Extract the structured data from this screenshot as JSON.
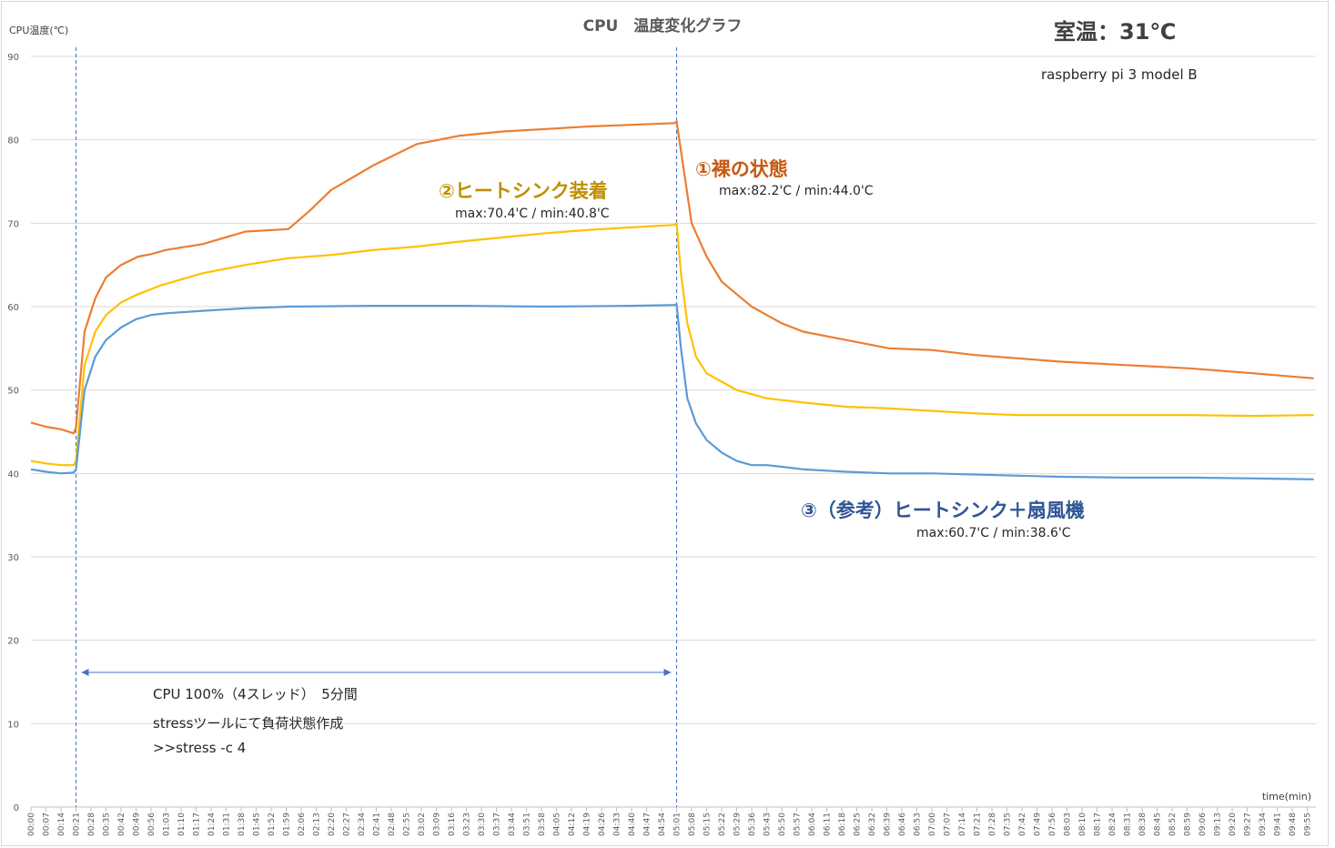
{
  "chart_data": {
    "type": "line",
    "title": "CPU　温度変化グラフ",
    "ylabel": "CPU温度(℃)",
    "xlabel": "time(min)",
    "ylim": [
      0,
      90
    ],
    "yticks": [
      0,
      10,
      20,
      30,
      40,
      50,
      60,
      70,
      80,
      90
    ],
    "grid": "horizontal",
    "room_temp": "室温：31℃",
    "device": "raspberry pi 3 model B",
    "x_start_seconds": 0,
    "x_end_seconds": 599,
    "x_tick_step_seconds": 7,
    "x_tick_labels": [
      "00:00",
      "00:07",
      "00:14",
      "00:21",
      "00:28",
      "00:35",
      "00:42",
      "00:49",
      "00:56",
      "01:03",
      "01:10",
      "01:17",
      "01:24",
      "01:31",
      "01:38",
      "01:45",
      "01:52",
      "01:59",
      "02:06",
      "02:13",
      "02:20",
      "02:27",
      "02:34",
      "02:41",
      "02:48",
      "02:55",
      "03:02",
      "03:09",
      "03:16",
      "03:23",
      "03:30",
      "03:37",
      "03:44",
      "03:51",
      "03:58",
      "04:05",
      "04:12",
      "04:19",
      "04:26",
      "04:33",
      "04:40",
      "04:47",
      "04:54",
      "05:01",
      "05:08",
      "05:15",
      "05:22",
      "05:29",
      "05:36",
      "05:43",
      "05:50",
      "05:57",
      "06:04",
      "06:11",
      "06:18",
      "06:25",
      "06:32",
      "06:39",
      "06:46",
      "06:53",
      "07:00",
      "07:07",
      "07:14",
      "07:21",
      "07:28",
      "07:35",
      "07:42",
      "07:49",
      "07:56",
      "08:03",
      "08:10",
      "08:17",
      "08:24",
      "08:31",
      "08:38",
      "08:45",
      "08:52",
      "08:59",
      "09:06",
      "09:13",
      "09:20",
      "09:27",
      "09:34",
      "09:41",
      "09:48",
      "09:55"
    ],
    "markers": {
      "stress_start": "00:21",
      "stress_end": "05:01"
    },
    "series": [
      {
        "name": "①裸の状態",
        "color": "#ed7d31",
        "summary": "max:82.2'C / min:44.0'C",
        "x": [
          "00:00",
          "00:07",
          "00:14",
          "00:20",
          "00:21",
          "00:25",
          "00:30",
          "00:35",
          "00:42",
          "00:50",
          "00:56",
          "01:03",
          "01:20",
          "01:40",
          "02:00",
          "02:10",
          "02:20",
          "02:40",
          "03:00",
          "03:20",
          "03:40",
          "04:00",
          "04:20",
          "04:40",
          "05:00",
          "05:01",
          "05:04",
          "05:08",
          "05:15",
          "05:22",
          "05:29",
          "05:36",
          "05:43",
          "05:50",
          "06:00",
          "06:20",
          "06:40",
          "07:00",
          "07:20",
          "07:40",
          "08:00",
          "08:30",
          "09:00",
          "09:30",
          "09:58"
        ],
        "values": [
          46.1,
          45.6,
          45.3,
          44.8,
          45.5,
          57,
          61,
          63.5,
          65,
          66,
          66.3,
          66.8,
          67.5,
          69,
          69.3,
          71.5,
          74,
          77,
          79.5,
          80.5,
          81,
          81.3,
          81.6,
          81.8,
          82,
          82.2,
          77,
          70,
          66,
          63,
          61.5,
          60,
          59,
          58,
          57,
          56,
          55,
          54.8,
          54.2,
          53.8,
          53.4,
          53,
          52.6,
          52,
          51.4
        ]
      },
      {
        "name": "②ヒートシンク装着",
        "color": "#ffc000",
        "summary": "max:70.4'C / min:40.8'C",
        "x": [
          "00:00",
          "00:07",
          "00:14",
          "00:20",
          "00:21",
          "00:25",
          "00:30",
          "00:35",
          "00:42",
          "00:50",
          "01:00",
          "01:20",
          "01:40",
          "02:00",
          "02:20",
          "02:40",
          "03:00",
          "03:20",
          "03:40",
          "04:00",
          "04:20",
          "04:40",
          "05:00",
          "05:01",
          "05:03",
          "05:06",
          "05:10",
          "05:15",
          "05:22",
          "05:29",
          "05:36",
          "05:43",
          "05:50",
          "06:00",
          "06:20",
          "06:40",
          "07:00",
          "07:20",
          "07:40",
          "08:00",
          "08:30",
          "09:00",
          "09:30",
          "09:58"
        ],
        "values": [
          41.5,
          41.2,
          41,
          41,
          41.5,
          53,
          57,
          59,
          60.5,
          61.5,
          62.5,
          64,
          65,
          65.8,
          66.2,
          66.8,
          67.2,
          67.8,
          68.3,
          68.8,
          69.2,
          69.5,
          69.8,
          70,
          64,
          58,
          54,
          52,
          51,
          50,
          49.5,
          49,
          48.8,
          48.5,
          48,
          47.8,
          47.5,
          47.2,
          47,
          47,
          47,
          47,
          46.9,
          47
        ]
      },
      {
        "name": "③（参考）ヒートシンク＋扇風機",
        "color": "#5b9bd5",
        "summary": "max:60.7'C / min:38.6'C",
        "x": [
          "00:00",
          "00:07",
          "00:14",
          "00:20",
          "00:21",
          "00:25",
          "00:30",
          "00:35",
          "00:42",
          "00:49",
          "00:56",
          "01:03",
          "01:20",
          "01:40",
          "02:00",
          "02:40",
          "03:20",
          "04:00",
          "04:40",
          "05:00",
          "05:01",
          "05:03",
          "05:06",
          "05:10",
          "05:15",
          "05:22",
          "05:29",
          "05:36",
          "05:43",
          "05:50",
          "06:00",
          "06:20",
          "06:40",
          "07:00",
          "07:30",
          "08:00",
          "08:30",
          "09:00",
          "09:30",
          "09:58"
        ],
        "values": [
          40.5,
          40.2,
          40,
          40.1,
          40.5,
          50,
          54,
          56,
          57.5,
          58.5,
          59,
          59.2,
          59.5,
          59.8,
          60,
          60.1,
          60.1,
          60,
          60.1,
          60.2,
          60.3,
          55,
          49,
          46,
          44,
          42.5,
          41.5,
          41,
          41,
          40.8,
          40.5,
          40.2,
          40,
          40,
          39.8,
          39.6,
          39.5,
          39.5,
          39.4,
          39.3
        ]
      }
    ],
    "annotations": {
      "stress_line1": "CPU 100%（4スレッド）　5分間",
      "stress_line2": "stressツールにて負荷状態作成",
      "stress_line3": ">>stress -c 4"
    }
  }
}
